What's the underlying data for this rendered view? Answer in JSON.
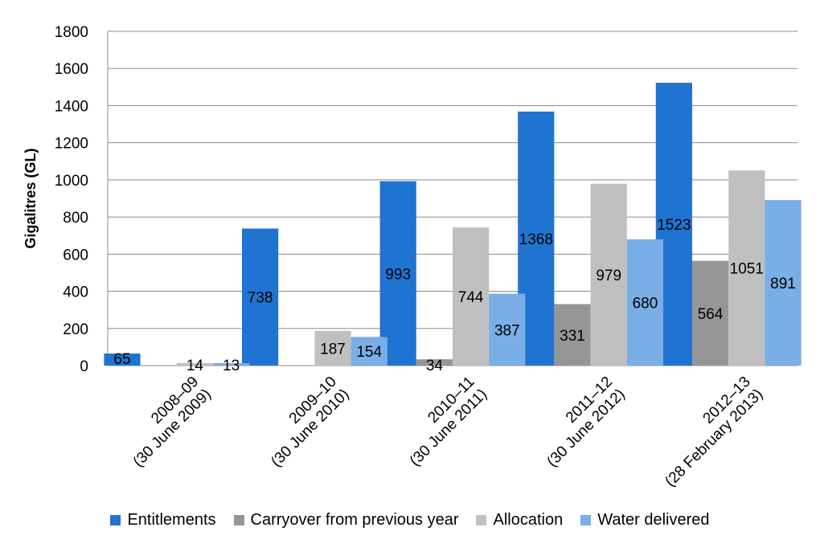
{
  "chart_data": {
    "type": "bar",
    "ylabel": "Gigalitres (GL)",
    "ylim": [
      0,
      1800
    ],
    "yticks": [
      0,
      200,
      400,
      600,
      800,
      1000,
      1200,
      1400,
      1600,
      1800
    ],
    "grid": true,
    "legend_position": "bottom",
    "categories": [
      [
        "2008–09",
        "(30 June 2009)"
      ],
      [
        "2009–10",
        "(30 June 2010)"
      ],
      [
        "2010–11",
        "(30 June 2011)"
      ],
      [
        "2011–12",
        "(30 June 2012)"
      ],
      [
        "2012–13",
        "(28 February 2013)"
      ]
    ],
    "series": [
      {
        "name": "Entitlements",
        "color": "#1f74d1",
        "values": [
          65,
          738,
          993,
          1368,
          1523
        ],
        "labels": [
          "65",
          "738",
          "993",
          "1368",
          "1523"
        ]
      },
      {
        "name": "Carryover from previous year",
        "color": "#969696",
        "values": [
          0,
          0,
          34,
          331,
          564
        ],
        "labels": [
          "",
          "",
          "34",
          "331",
          "564"
        ]
      },
      {
        "name": "Allocation",
        "color": "#c0c0c0",
        "values": [
          14,
          187,
          744,
          979,
          1051
        ],
        "labels": [
          "14",
          "187",
          "744",
          "979",
          "1051"
        ]
      },
      {
        "name": "Water delivered",
        "color": "#7aaee6",
        "values": [
          13,
          154,
          387,
          680,
          891
        ],
        "labels": [
          "13",
          "154",
          "387",
          "680",
          "891"
        ]
      }
    ]
  }
}
